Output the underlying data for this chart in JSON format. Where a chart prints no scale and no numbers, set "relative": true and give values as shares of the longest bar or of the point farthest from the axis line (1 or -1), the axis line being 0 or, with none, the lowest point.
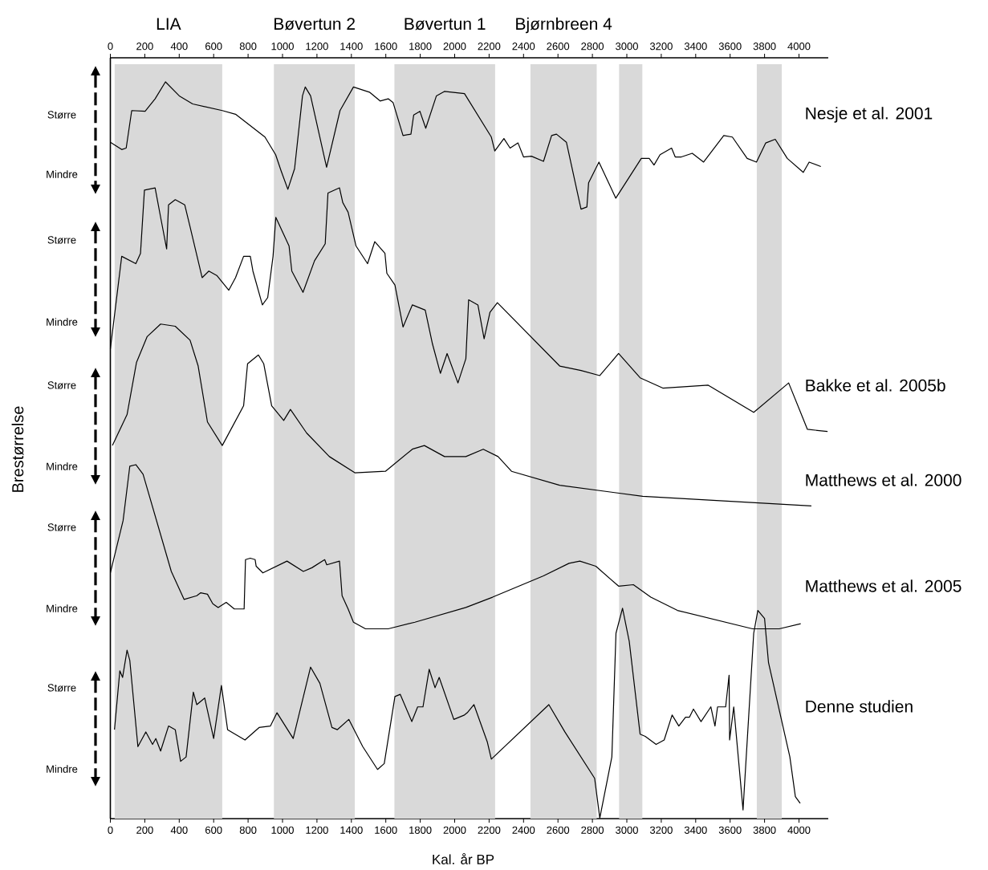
{
  "chart_data": {
    "type": "line",
    "relative": true,
    "xlabel": "Kal. år BP",
    "xlim": [
      0,
      4170
    ],
    "xticks": [
      0,
      200,
      400,
      600,
      800,
      1000,
      1200,
      1400,
      1600,
      1800,
      2000,
      2200,
      2400,
      2600,
      2800,
      3000,
      3200,
      3400,
      3600,
      3800,
      4000
    ],
    "x2lim": [
      0,
      4170
    ],
    "x2ticks": [
      0,
      200,
      400,
      600,
      800,
      1000,
      1200,
      1400,
      1600,
      1800,
      2000,
      2200,
      2400,
      2600,
      2800,
      3000,
      3200,
      3400,
      3600,
      3800,
      4000
    ],
    "annotations": [
      "Større",
      "Mindre",
      "Større",
      "Mindre",
      "Større",
      "Mindre",
      "Større",
      "Mindre",
      "Større",
      "Mindre",
      "Brestørrelse"
    ],
    "bands": [
      {
        "axis": "x",
        "from": 25,
        "to": 650,
        "label": "LIA",
        "color": "#d9d9d9"
      },
      {
        "axis": "x",
        "from": 950,
        "to": 1420,
        "label": "Bøvertun 2",
        "color": "#d9d9d9"
      },
      {
        "axis": "x",
        "from": 1650,
        "to": 2235,
        "label": "Bøvertun 1",
        "color": "#d9d9d9"
      },
      {
        "axis": "x",
        "from": 2440,
        "to": 2825,
        "label": "Bjørnbreen 4",
        "color": "#d9d9d9"
      },
      {
        "axis": "x",
        "from": 2955,
        "to": 3090,
        "color": "#d9d9d9"
      },
      {
        "axis": "x",
        "from": 3755,
        "to": 3900,
        "color": "#d9d9d9"
      }
    ],
    "series": [
      {
        "name": "Nesje et al. 2001",
        "color": "#000000",
        "x": [
          0,
          66,
          92,
          124,
          202,
          260,
          320,
          400,
          478,
          650,
          727,
          898,
          960,
          992,
          1031,
          1070,
          1116,
          1132,
          1163,
          1256,
          1334,
          1412,
          1505,
          1567,
          1614,
          1642,
          1700,
          1746,
          1762,
          1798,
          1832,
          1894,
          1940,
          2057,
          2213,
          2233,
          2286,
          2322,
          2368,
          2400,
          2446,
          2516,
          2563,
          2591,
          2649,
          2734,
          2768,
          2778,
          2838,
          2936,
          3084,
          3130,
          3158,
          3193,
          3260,
          3281,
          3317,
          3380,
          3446,
          3563,
          3613,
          3699,
          3753,
          3807,
          3862,
          3932,
          4025,
          4059,
          4127
        ],
        "values": [
          0.918,
          0.908,
          0.91,
          0.961,
          0.96,
          0.977,
          1.0,
          0.981,
          0.97,
          0.961,
          0.956,
          0.925,
          0.901,
          0.879,
          0.854,
          0.882,
          0.981,
          0.993,
          0.981,
          0.884,
          0.961,
          0.993,
          0.986,
          0.974,
          0.977,
          0.972,
          0.927,
          0.929,
          0.955,
          0.96,
          0.937,
          0.981,
          0.987,
          0.984,
          0.925,
          0.906,
          0.923,
          0.91,
          0.917,
          0.898,
          0.899,
          0.892,
          0.927,
          0.929,
          0.918,
          0.827,
          0.83,
          0.863,
          0.891,
          0.842,
          0.896,
          0.896,
          0.887,
          0.901,
          0.91,
          0.898,
          0.898,
          0.903,
          0.891,
          0.927,
          0.925,
          0.896,
          0.891,
          0.917,
          0.922,
          0.896,
          0.877,
          0.891,
          0.885
        ]
      },
      {
        "name": "Bakke et al. 2005b",
        "color": "#000000",
        "x": [
          0,
          66,
          148,
          175,
          198,
          260,
          292,
          327,
          338,
          377,
          432,
          463,
          517,
          533,
          572,
          618,
          688,
          727,
          774,
          813,
          828,
          883,
          914,
          945,
          961,
          1038,
          1054,
          1119,
          1186,
          1248,
          1264,
          1331,
          1350,
          1381,
          1427,
          1494,
          1536,
          1595,
          1606,
          1653,
          1700,
          1754,
          1829,
          1871,
          1917,
          1956,
          2019,
          2065,
          2081,
          2135,
          2171,
          2205,
          2248,
          2610,
          2734,
          2843,
          2952,
          3077,
          3209,
          3473,
          3737,
          3940,
          4049,
          4166
        ],
        "values": [
          0.637,
          0.763,
          0.753,
          0.767,
          0.853,
          0.856,
          0.816,
          0.773,
          0.833,
          0.84,
          0.833,
          0.803,
          0.75,
          0.734,
          0.743,
          0.737,
          0.717,
          0.734,
          0.763,
          0.763,
          0.743,
          0.697,
          0.707,
          0.763,
          0.816,
          0.777,
          0.743,
          0.714,
          0.757,
          0.78,
          0.849,
          0.856,
          0.836,
          0.823,
          0.777,
          0.753,
          0.783,
          0.767,
          0.74,
          0.724,
          0.667,
          0.697,
          0.69,
          0.644,
          0.604,
          0.631,
          0.591,
          0.624,
          0.704,
          0.697,
          0.651,
          0.687,
          0.7,
          0.614,
          0.608,
          0.601,
          0.631,
          0.598,
          0.584,
          0.588,
          0.551,
          0.591,
          0.528,
          0.525
        ]
      },
      {
        "name": "Matthews et al. 2000",
        "color": "#000000",
        "x": [
          12,
          97,
          152,
          214,
          292,
          377,
          463,
          510,
          564,
          650,
          774,
          797,
          860,
          891,
          937,
          1007,
          1046,
          1140,
          1272,
          1420,
          1598,
          1754,
          1824,
          1941,
          2065,
          2166,
          2252,
          2330,
          2610,
          3092,
          4072
        ],
        "values": [
          0.506,
          0.548,
          0.619,
          0.654,
          0.671,
          0.668,
          0.649,
          0.614,
          0.538,
          0.506,
          0.56,
          0.617,
          0.629,
          0.617,
          0.56,
          0.54,
          0.555,
          0.523,
          0.491,
          0.469,
          0.471,
          0.501,
          0.506,
          0.491,
          0.491,
          0.501,
          0.491,
          0.471,
          0.452,
          0.437,
          0.424
        ]
      },
      {
        "name": "Matthews et al. 2005",
        "color": "#000000",
        "x": [
          0,
          74,
          113,
          148,
          190,
          354,
          428,
          502,
          525,
          564,
          595,
          626,
          673,
          720,
          777,
          785,
          813,
          841,
          847,
          886,
          1026,
          1121,
          1171,
          1245,
          1257,
          1331,
          1346,
          1381,
          1412,
          1482,
          1614,
          1769,
          2065,
          2220,
          2516,
          2664,
          2727,
          2820,
          2952,
          3038,
          3139,
          3294,
          3730,
          3885,
          4010
        ],
        "values": [
          0.333,
          0.404,
          0.478,
          0.48,
          0.467,
          0.335,
          0.297,
          0.302,
          0.306,
          0.304,
          0.291,
          0.286,
          0.293,
          0.284,
          0.284,
          0.351,
          0.353,
          0.351,
          0.342,
          0.333,
          0.349,
          0.335,
          0.34,
          0.351,
          0.344,
          0.349,
          0.302,
          0.284,
          0.266,
          0.257,
          0.257,
          0.266,
          0.286,
          0.3,
          0.329,
          0.346,
          0.349,
          0.342,
          0.315,
          0.317,
          0.3,
          0.282,
          0.257,
          0.257,
          0.264
        ]
      },
      {
        "name": "Denne studien",
        "color": "#000000",
        "x": [
          24,
          55,
          71,
          97,
          113,
          160,
          206,
          245,
          264,
          292,
          338,
          377,
          408,
          440,
          482,
          502,
          548,
          600,
          645,
          681,
          782,
          864,
          930,
          968,
          1062,
          1163,
          1217,
          1287,
          1318,
          1385,
          1466,
          1552,
          1591,
          1653,
          1684,
          1751,
          1785,
          1816,
          1852,
          1886,
          1910,
          1995,
          2057,
          2073,
          2112,
          2190,
          2213,
          2547,
          2640,
          2813,
          2843,
          2913,
          2937,
          2975,
          3014,
          3077,
          3107,
          3170,
          3217,
          3263,
          3302,
          3341,
          3364,
          3387,
          3431,
          3488,
          3512,
          3527,
          3574,
          3594,
          3597,
          3621,
          3675,
          3737,
          3761,
          3800,
          3823,
          3947,
          3979,
          4007
        ],
        "values": [
          0.12,
          0.2,
          0.191,
          0.228,
          0.214,
          0.097,
          0.117,
          0.1,
          0.108,
          0.091,
          0.125,
          0.12,
          0.077,
          0.083,
          0.171,
          0.154,
          0.163,
          0.108,
          0.18,
          0.12,
          0.106,
          0.123,
          0.125,
          0.143,
          0.108,
          0.205,
          0.183,
          0.123,
          0.12,
          0.134,
          0.097,
          0.066,
          0.074,
          0.165,
          0.168,
          0.131,
          0.151,
          0.151,
          0.202,
          0.177,
          0.191,
          0.134,
          0.14,
          0.143,
          0.154,
          0.103,
          0.08,
          0.154,
          0.117,
          0.054,
          0,
          0.083,
          0.251,
          0.285,
          0.24,
          0.114,
          0.111,
          0.1,
          0.106,
          0.14,
          0.125,
          0.137,
          0.137,
          0.148,
          0.131,
          0.151,
          0.125,
          0.151,
          0.151,
          0.194,
          0.106,
          0.151,
          0.011,
          0.251,
          0.282,
          0.271,
          0.211,
          0.083,
          0.029,
          0.02
        ]
      }
    ]
  }
}
